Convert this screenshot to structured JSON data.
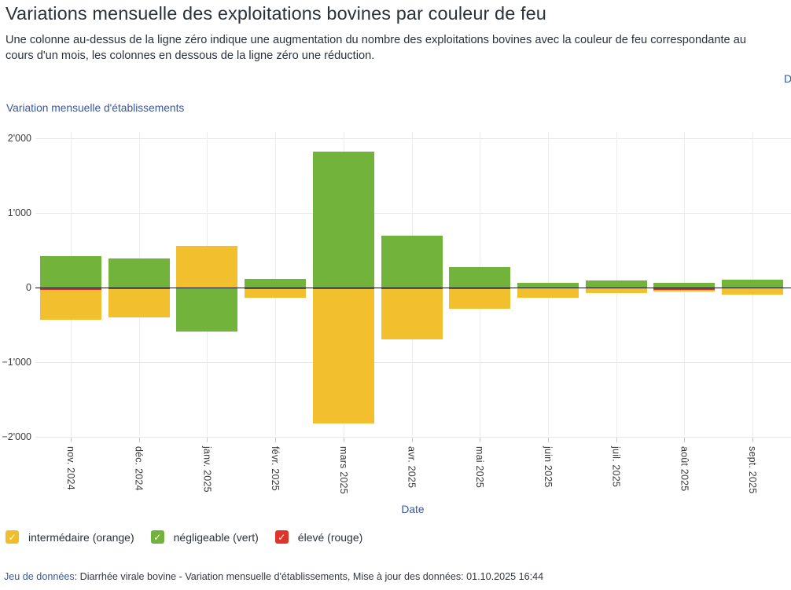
{
  "page": {
    "title": "Variations mensuelle des exploitations bovines par couleur de feu",
    "subtitle": "Une colonne au-dessus de la ligne zéro indique une augmentation du nombre des exploitations bovines avec la couleur de feu correspondante au cours d'un mois, les colonnes en dessous de la ligne zéro une réduction.",
    "top_link_truncated": "D",
    "footer": {
      "link_label": "Jeu de données",
      "text": ": Diarrhée virale bovine - Variation mensuelle d'établissements, Mise à jour des données: 01.10.2025 16:44"
    }
  },
  "chart": {
    "heading": "Variation mensuelle d'établissements",
    "x_axis_title": "Date",
    "legend": [
      {
        "label": "intermédaire (orange)",
        "color": "#F0BE2A",
        "checked": true
      },
      {
        "label": "négligeable (vert)",
        "color": "#72B33C",
        "checked": true
      },
      {
        "label": "élevé (rouge)",
        "color": "#DE342B",
        "checked": true
      }
    ],
    "check_glyph": "✓"
  },
  "chart_data": {
    "type": "bar",
    "stacked": true,
    "title": "Variation mensuelle d'établissements",
    "xlabel": "Date",
    "ylabel": "",
    "categories": [
      "nov. 2024",
      "déc. 2024",
      "janv. 2025",
      "févr. 2025",
      "mars 2025",
      "avr. 2025",
      "mai 2025",
      "juin 2025",
      "juil. 2025",
      "août 2025",
      "sept. 2025"
    ],
    "series": [
      {
        "name": "intermédaire (orange)",
        "color": "#F2C02E",
        "values": [
          -400,
          -370,
          555,
          -115,
          -1800,
          -670,
          -265,
          -120,
          -60,
          -20,
          -75
        ]
      },
      {
        "name": "négligeable (vert)",
        "color": "#72B33C",
        "values": [
          420,
          390,
          -580,
          120,
          1820,
          695,
          275,
          60,
          90,
          65,
          110
        ]
      },
      {
        "name": "élevé (rouge)",
        "color": "#DE342B",
        "values": [
          -20,
          -15,
          0,
          -15,
          -15,
          -15,
          -10,
          -5,
          -5,
          -25,
          -5
        ]
      }
    ],
    "y_ticks": [
      {
        "value": 2000,
        "label": "2'000"
      },
      {
        "value": 1000,
        "label": "1'000"
      },
      {
        "value": 0,
        "label": "0"
      },
      {
        "value": -1000,
        "label": "−1'000"
      },
      {
        "value": -2000,
        "label": "−2'000"
      }
    ],
    "ylim": [
      -2200,
      2100
    ],
    "grid": true,
    "legend_position": "bottom"
  }
}
